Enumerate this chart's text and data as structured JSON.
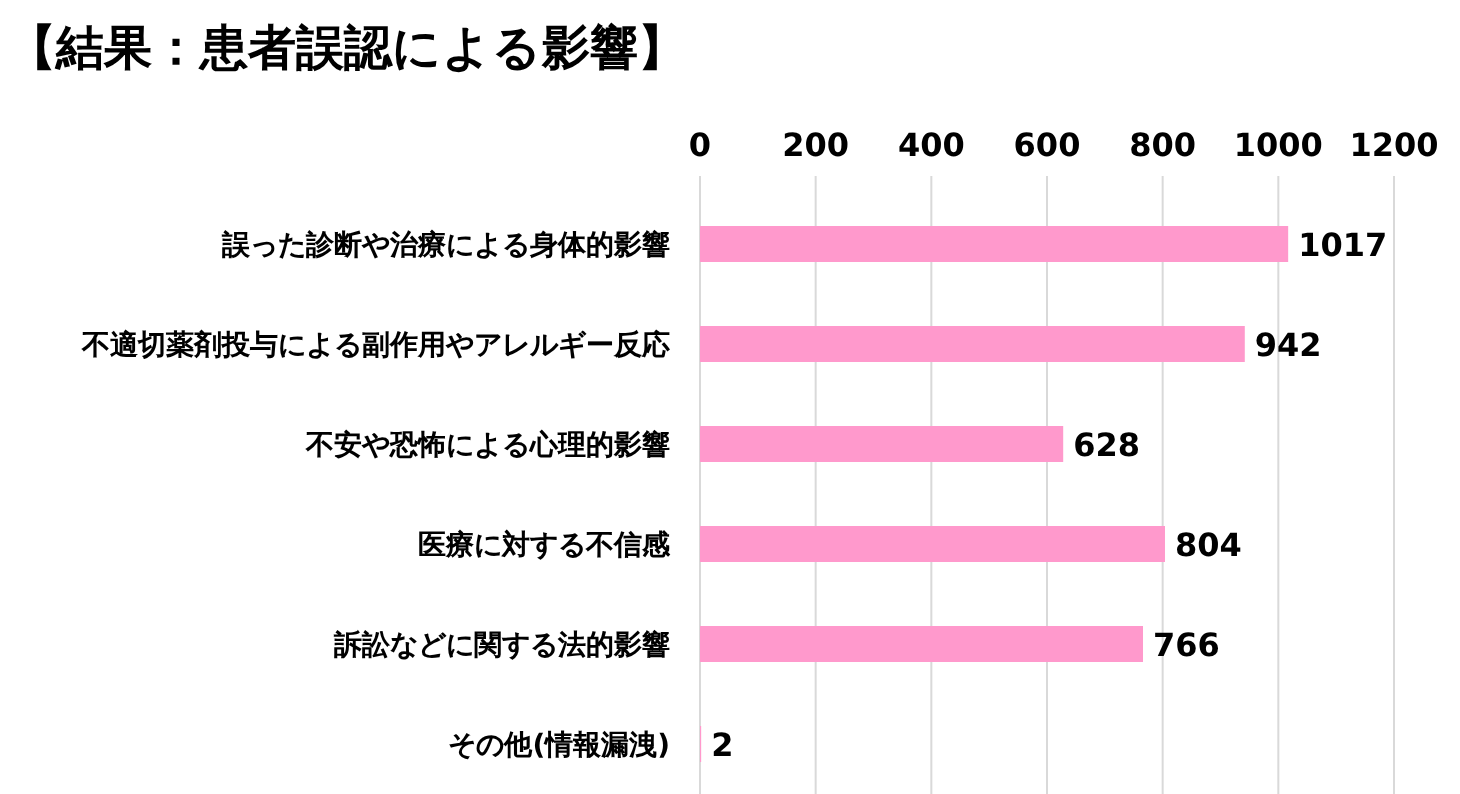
{
  "chart_data": {
    "type": "bar",
    "orientation": "horizontal",
    "title": "【結果：患者誤認による影響】",
    "categories": [
      "誤った診断や治療による身体的影響",
      "不適切薬剤投与による副作用やアレルギー反応",
      "不安や恐怖による心理的影響",
      "医療に対する不信感",
      "訴訟などに関する法的影響",
      "その他(情報漏洩)"
    ],
    "values": [
      1017,
      942,
      628,
      804,
      766,
      2
    ],
    "color": "#ff99cc",
    "xlim": [
      0,
      1200
    ],
    "xticks": [
      0,
      200,
      400,
      600,
      800,
      1000,
      1200
    ],
    "grid": "x",
    "data_labels": true
  }
}
